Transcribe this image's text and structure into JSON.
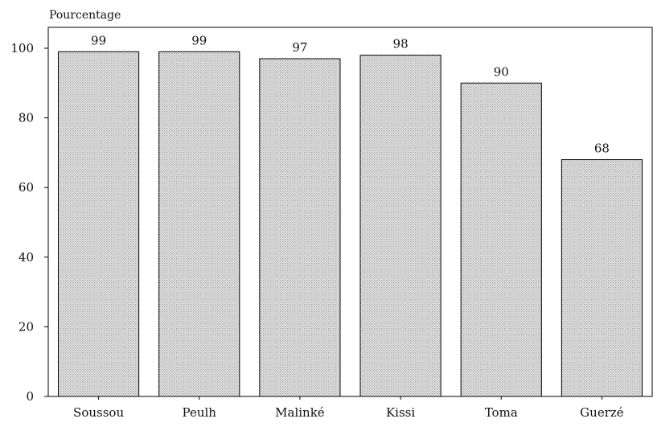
{
  "chart_data": {
    "type": "bar",
    "title": "",
    "xlabel": "",
    "ylabel": "Pourcentage",
    "categories": [
      "Soussou",
      "Peulh",
      "Malinké",
      "Kissi",
      "Toma",
      "Guerzé"
    ],
    "values": [
      99,
      99,
      97,
      98,
      90,
      68
    ],
    "data_labels": [
      "99",
      "99",
      "97",
      "98",
      "90",
      "68"
    ],
    "ylim": [
      0,
      106
    ],
    "yticks": [
      0,
      20,
      40,
      60,
      80,
      100
    ],
    "ytick_labels": [
      "0",
      "20",
      "40",
      "60",
      "80",
      "100"
    ],
    "grid": false,
    "legend": "none",
    "bar_fill": "#d4d4d4",
    "bar_pattern": "dotted",
    "bar_stroke": "#000000"
  }
}
